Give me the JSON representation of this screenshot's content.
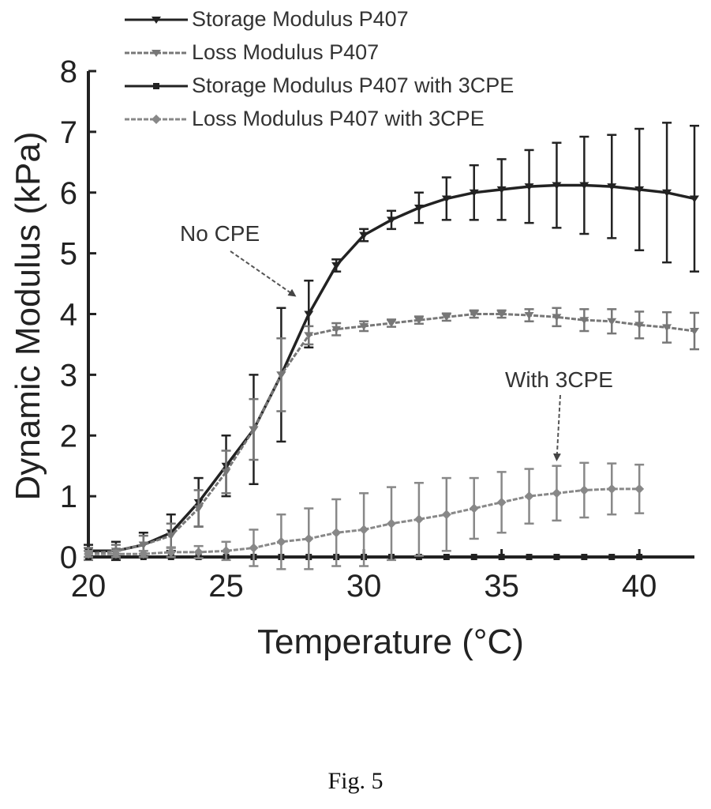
{
  "chart_data": {
    "type": "line",
    "xlabel": "Temperature (°C)",
    "ylabel": "Dynamic Modulus (kPa)",
    "xlim": [
      20,
      42
    ],
    "ylim": [
      0,
      8
    ],
    "xticks": [
      20,
      25,
      30,
      35,
      40
    ],
    "yticks": [
      0,
      1,
      2,
      3,
      4,
      5,
      6,
      7,
      8
    ],
    "grid": false,
    "legend_position": "top-left",
    "series": [
      {
        "name": "Storage Modulus P407",
        "color": "#222222",
        "marker": "triangle",
        "x": [
          20,
          21,
          22,
          23,
          24,
          25,
          26,
          27,
          28,
          29,
          30,
          31,
          32,
          33,
          34,
          35,
          36,
          37,
          38,
          39,
          40,
          41,
          42
        ],
        "values": [
          0.1,
          0.1,
          0.2,
          0.4,
          0.9,
          1.5,
          2.1,
          3.0,
          4.0,
          4.8,
          5.3,
          5.55,
          5.75,
          5.9,
          6.0,
          6.05,
          6.1,
          6.12,
          6.12,
          6.1,
          6.05,
          6.0,
          5.9
        ],
        "errors": [
          0.1,
          0.15,
          0.2,
          0.3,
          0.4,
          0.5,
          0.9,
          1.1,
          0.55,
          0.1,
          0.1,
          0.15,
          0.25,
          0.35,
          0.45,
          0.5,
          0.6,
          0.7,
          0.8,
          0.85,
          1.0,
          1.15,
          1.2
        ]
      },
      {
        "name": "Loss Modulus P407",
        "color": "#777777",
        "marker": "triangle",
        "x": [
          20,
          21,
          22,
          23,
          24,
          25,
          26,
          27,
          28,
          29,
          30,
          31,
          32,
          33,
          34,
          35,
          36,
          37,
          38,
          39,
          40,
          41,
          42
        ],
        "values": [
          0.05,
          0.1,
          0.2,
          0.35,
          0.8,
          1.4,
          2.1,
          3.0,
          3.65,
          3.75,
          3.8,
          3.85,
          3.9,
          3.95,
          4.0,
          4.0,
          3.98,
          3.95,
          3.9,
          3.88,
          3.82,
          3.78,
          3.72
        ],
        "errors": [
          0.1,
          0.1,
          0.15,
          0.2,
          0.3,
          0.35,
          0.5,
          0.6,
          0.15,
          0.1,
          0.08,
          0.06,
          0.06,
          0.06,
          0.06,
          0.06,
          0.1,
          0.15,
          0.18,
          0.2,
          0.22,
          0.25,
          0.3
        ]
      },
      {
        "name": "Storage Modulus P407 with 3CPE",
        "color": "#222222",
        "marker": "square",
        "x": [
          20,
          21,
          22,
          23,
          24,
          25,
          26,
          27,
          28,
          29,
          30,
          31,
          32,
          33,
          34,
          35,
          36,
          37,
          38,
          39,
          40
        ],
        "values": [
          0.0,
          0.0,
          0.0,
          0.0,
          0.0,
          0.0,
          0.0,
          0.0,
          0.0,
          0.0,
          0.0,
          0.0,
          0.0,
          0.0,
          0.0,
          0.0,
          0.0,
          0.0,
          0.0,
          0.0,
          0.0
        ],
        "errors": [
          0,
          0,
          0,
          0,
          0,
          0,
          0,
          0,
          0,
          0,
          0,
          0,
          0,
          0,
          0,
          0,
          0,
          0,
          0,
          0,
          0
        ]
      },
      {
        "name": "Loss Modulus P407 with 3CPE",
        "color": "#888888",
        "marker": "diamond",
        "x": [
          20,
          21,
          22,
          23,
          24,
          25,
          26,
          27,
          28,
          29,
          30,
          31,
          32,
          33,
          34,
          35,
          36,
          37,
          38,
          39,
          40
        ],
        "values": [
          0.05,
          0.05,
          0.05,
          0.08,
          0.08,
          0.1,
          0.15,
          0.25,
          0.3,
          0.4,
          0.45,
          0.55,
          0.62,
          0.7,
          0.8,
          0.9,
          1.0,
          1.05,
          1.1,
          1.12,
          1.12
        ],
        "errors": [
          0.05,
          0.05,
          0.05,
          0.08,
          0.1,
          0.15,
          0.3,
          0.45,
          0.5,
          0.55,
          0.6,
          0.6,
          0.6,
          0.6,
          0.5,
          0.5,
          0.45,
          0.45,
          0.45,
          0.42,
          0.4
        ]
      }
    ],
    "annotations": [
      {
        "text": "No CPE",
        "arrow_to": {
          "x": 27.5,
          "y": 4.3
        }
      },
      {
        "text": "With 3CPE",
        "arrow_to": {
          "x": 37.0,
          "y": 1.6
        }
      }
    ]
  },
  "caption": "Fig. 5"
}
